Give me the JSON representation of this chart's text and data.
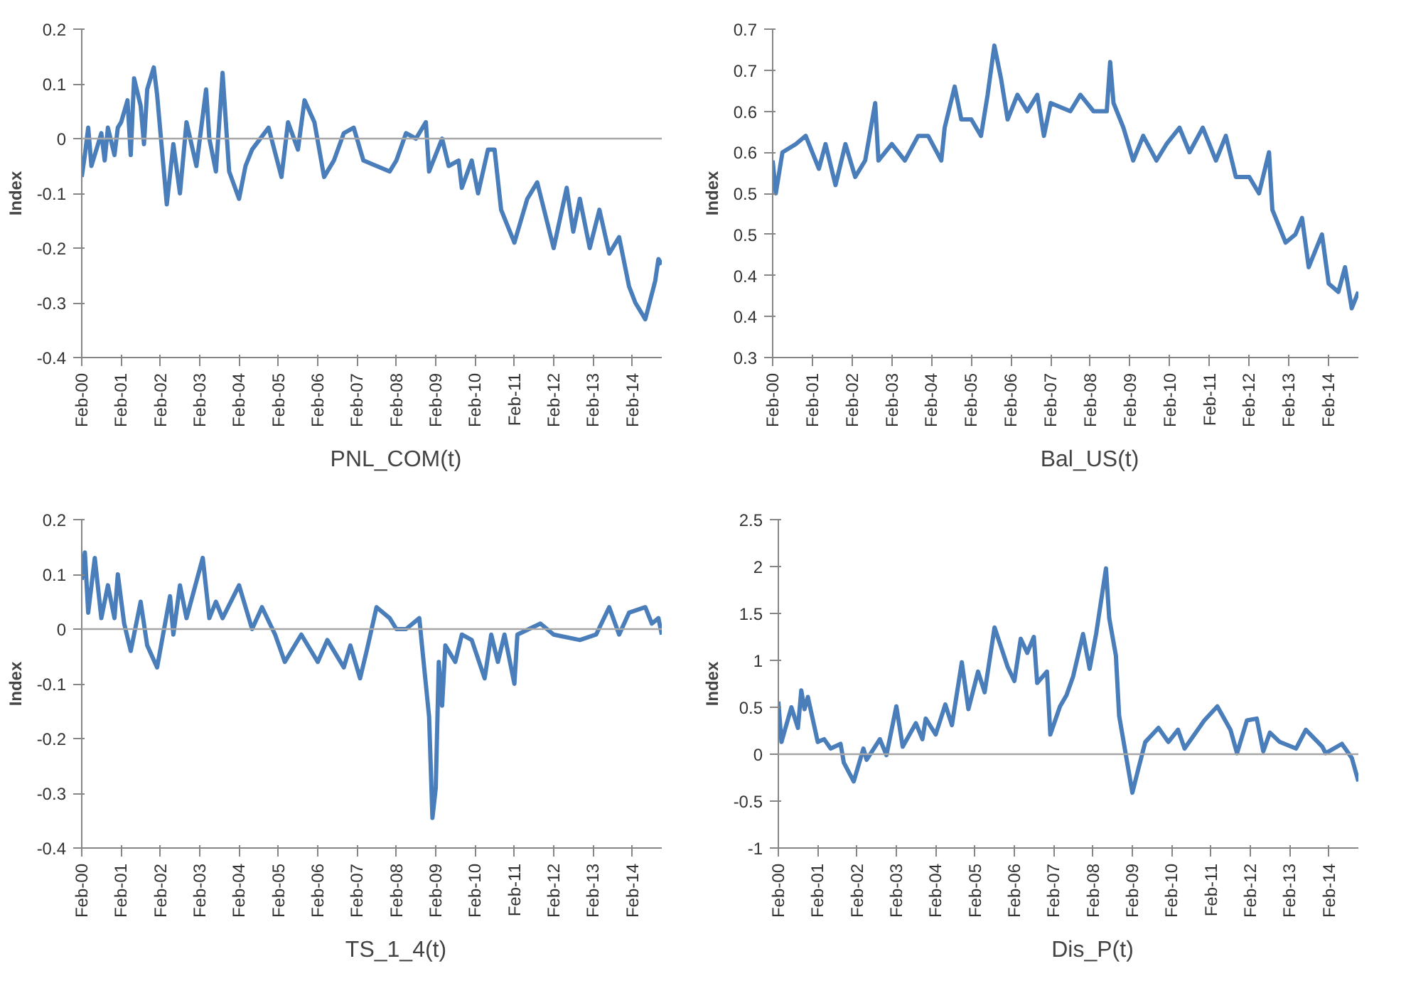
{
  "chart_data": [
    {
      "type": "line",
      "ylabel": "Index",
      "legend": "bottom",
      "ylim": [
        -0.4,
        0.2
      ],
      "yticks": [
        -0.4,
        -0.3,
        -0.2,
        -0.1,
        0,
        0.1,
        0.2
      ],
      "xlim": [
        "2000-02",
        "2014-11"
      ],
      "xticks": [
        {
          "value": "2000-02",
          "label": "Feb-00"
        },
        {
          "value": "2001-02",
          "label": "Feb-01"
        },
        {
          "value": "2002-02",
          "label": "Feb-02"
        },
        {
          "value": "2003-02",
          "label": "Feb-03"
        },
        {
          "value": "2004-02",
          "label": "Feb-04"
        },
        {
          "value": "2005-02",
          "label": "Feb-05"
        },
        {
          "value": "2006-02",
          "label": "Feb-06"
        },
        {
          "value": "2007-02",
          "label": "Feb-07"
        },
        {
          "value": "2008-02",
          "label": "Feb-08"
        },
        {
          "value": "2009-02",
          "label": "Feb-09"
        },
        {
          "value": "2010-02",
          "label": "Feb-10"
        },
        {
          "value": "2011-02",
          "label": "Feb-11"
        },
        {
          "value": "2012-02",
          "label": "Feb-12"
        },
        {
          "value": "2013-02",
          "label": "Feb-13"
        },
        {
          "value": "2014-02",
          "label": "Feb-14"
        }
      ],
      "ref_lines": [
        {
          "axis": "y",
          "value": 0,
          "color": "#a6a6a6"
        }
      ],
      "series": [
        {
          "name": "PNL_COM(t)",
          "color": "#4a7ebb",
          "x": [
            "2000-02",
            "2000-03",
            "2000-04",
            "2000-05",
            "2000-08",
            "2000-09",
            "2000-10",
            "2000-12",
            "2001-01",
            "2001-02",
            "2001-04",
            "2001-05",
            "2001-06",
            "2001-08",
            "2001-09",
            "2001-10",
            "2001-12",
            "2002-01",
            "2002-04",
            "2002-06",
            "2002-08",
            "2002-10",
            "2003-01",
            "2003-04",
            "2003-05",
            "2003-07",
            "2003-09",
            "2003-11",
            "2004-02",
            "2004-04",
            "2004-06",
            "2004-11",
            "2005-03",
            "2005-05",
            "2005-08",
            "2005-10",
            "2006-01",
            "2006-04",
            "2006-07",
            "2006-10",
            "2007-01",
            "2007-04",
            "2007-08",
            "2007-12",
            "2008-02",
            "2008-05",
            "2008-08",
            "2008-11",
            "2008-12",
            "2009-04",
            "2009-06",
            "2009-09",
            "2009-10",
            "2010-01",
            "2010-03",
            "2010-06",
            "2010-08",
            "2010-10",
            "2011-02",
            "2011-06",
            "2011-09",
            "2012-02",
            "2012-06",
            "2012-08",
            "2012-10",
            "2013-01",
            "2013-04",
            "2013-07",
            "2013-10",
            "2014-01",
            "2014-03",
            "2014-06",
            "2014-09",
            "2014-10",
            "2014-11"
          ],
          "values": [
            -0.07,
            -0.03,
            0.02,
            -0.05,
            0.01,
            -0.04,
            0.02,
            -0.03,
            0.02,
            0.03,
            0.07,
            -0.03,
            0.11,
            0.06,
            -0.01,
            0.09,
            0.13,
            0.08,
            -0.12,
            -0.01,
            -0.1,
            0.03,
            -0.05,
            0.09,
            0.0,
            -0.06,
            0.12,
            -0.06,
            -0.11,
            -0.05,
            -0.02,
            0.02,
            -0.07,
            0.03,
            -0.02,
            0.07,
            0.03,
            -0.07,
            -0.04,
            0.01,
            0.02,
            -0.04,
            -0.05,
            -0.06,
            -0.04,
            0.01,
            0.0,
            0.03,
            -0.06,
            0.0,
            -0.05,
            -0.04,
            -0.09,
            -0.04,
            -0.1,
            -0.02,
            -0.02,
            -0.13,
            -0.19,
            -0.11,
            -0.08,
            -0.2,
            -0.09,
            -0.17,
            -0.11,
            -0.2,
            -0.13,
            -0.21,
            -0.18,
            -0.27,
            -0.3,
            -0.33,
            -0.26,
            -0.22,
            -0.23
          ]
        }
      ]
    },
    {
      "type": "line",
      "ylabel": "Index",
      "legend": "bottom",
      "ylim": [
        0.3,
        0.7
      ],
      "yticks": [
        0.3,
        {
          "value": 0.35,
          "label": "0.4"
        },
        0.4,
        {
          "value": 0.45,
          "label": "0.5"
        },
        0.5,
        {
          "value": 0.55,
          "label": "0.6"
        },
        0.6,
        {
          "value": 0.65,
          "label": "0.7"
        },
        0.7
      ],
      "xlim": [
        "2000-02",
        "2014-11"
      ],
      "xticks": [
        {
          "value": "2000-02",
          "label": "Feb-00"
        },
        {
          "value": "2001-02",
          "label": "Feb-01"
        },
        {
          "value": "2002-02",
          "label": "Feb-02"
        },
        {
          "value": "2003-02",
          "label": "Feb-03"
        },
        {
          "value": "2004-02",
          "label": "Feb-04"
        },
        {
          "value": "2005-02",
          "label": "Feb-05"
        },
        {
          "value": "2006-02",
          "label": "Feb-06"
        },
        {
          "value": "2007-02",
          "label": "Feb-07"
        },
        {
          "value": "2008-02",
          "label": "Feb-08"
        },
        {
          "value": "2009-02",
          "label": "Feb-09"
        },
        {
          "value": "2010-02",
          "label": "Feb-10"
        },
        {
          "value": "2011-02",
          "label": "Feb-11"
        },
        {
          "value": "2012-02",
          "label": "Feb-12"
        },
        {
          "value": "2013-02",
          "label": "Feb-13"
        },
        {
          "value": "2014-02",
          "label": "Feb-14"
        }
      ],
      "series": [
        {
          "name": "Bal_US(t)",
          "color": "#4a7ebb",
          "x": [
            "2000-02",
            "2000-03",
            "2000-05",
            "2000-09",
            "2000-12",
            "2001-04",
            "2001-06",
            "2001-09",
            "2001-12",
            "2002-03",
            "2002-06",
            "2002-09",
            "2002-10",
            "2003-02",
            "2003-06",
            "2003-10",
            "2004-01",
            "2004-05",
            "2004-06",
            "2004-09",
            "2004-11",
            "2005-02",
            "2005-05",
            "2005-07",
            "2005-09",
            "2005-11",
            "2006-01",
            "2006-04",
            "2006-07",
            "2006-10",
            "2006-12",
            "2007-02",
            "2007-08",
            "2007-11",
            "2008-03",
            "2008-07",
            "2008-08",
            "2008-09",
            "2008-12",
            "2009-03",
            "2009-06",
            "2009-10",
            "2010-01",
            "2010-05",
            "2010-08",
            "2010-12",
            "2011-04",
            "2011-07",
            "2011-10",
            "2012-02",
            "2012-05",
            "2012-08",
            "2012-09",
            "2013-01",
            "2013-04",
            "2013-06",
            "2013-08",
            "2013-12",
            "2014-02",
            "2014-05",
            "2014-07",
            "2014-09",
            "2014-11"
          ],
          "values": [
            0.54,
            0.5,
            0.55,
            0.56,
            0.57,
            0.53,
            0.56,
            0.51,
            0.56,
            0.52,
            0.54,
            0.61,
            0.54,
            0.56,
            0.54,
            0.57,
            0.57,
            0.54,
            0.58,
            0.63,
            0.59,
            0.59,
            0.57,
            0.62,
            0.68,
            0.64,
            0.59,
            0.62,
            0.6,
            0.62,
            0.57,
            0.61,
            0.6,
            0.62,
            0.6,
            0.6,
            0.66,
            0.61,
            0.58,
            0.54,
            0.57,
            0.54,
            0.56,
            0.58,
            0.55,
            0.58,
            0.54,
            0.57,
            0.52,
            0.52,
            0.5,
            0.55,
            0.48,
            0.44,
            0.45,
            0.47,
            0.41,
            0.45,
            0.39,
            0.38,
            0.41,
            0.36,
            0.38
          ]
        }
      ]
    },
    {
      "type": "line",
      "ylabel": "Index",
      "legend": "bottom",
      "ylim": [
        -0.4,
        0.2
      ],
      "yticks": [
        -0.4,
        -0.3,
        -0.2,
        -0.1,
        0,
        0.1,
        0.2
      ],
      "xlim": [
        "2000-02",
        "2014-11"
      ],
      "xticks": [
        {
          "value": "2000-02",
          "label": "Feb-00"
        },
        {
          "value": "2001-02",
          "label": "Feb-01"
        },
        {
          "value": "2002-02",
          "label": "Feb-02"
        },
        {
          "value": "2003-02",
          "label": "Feb-03"
        },
        {
          "value": "2004-02",
          "label": "Feb-04"
        },
        {
          "value": "2005-02",
          "label": "Feb-05"
        },
        {
          "value": "2006-02",
          "label": "Feb-06"
        },
        {
          "value": "2007-02",
          "label": "Feb-07"
        },
        {
          "value": "2008-02",
          "label": "Feb-08"
        },
        {
          "value": "2009-02",
          "label": "Feb-09"
        },
        {
          "value": "2010-02",
          "label": "Feb-10"
        },
        {
          "value": "2011-02",
          "label": "Feb-11"
        },
        {
          "value": "2012-02",
          "label": "Feb-12"
        },
        {
          "value": "2013-02",
          "label": "Feb-13"
        },
        {
          "value": "2014-02",
          "label": "Feb-14"
        }
      ],
      "ref_lines": [
        {
          "axis": "y",
          "value": 0,
          "color": "#a6a6a6"
        }
      ],
      "series": [
        {
          "name": "TS_1_4(t)",
          "color": "#4a7ebb",
          "x": [
            "2000-02",
            "2000-03",
            "2000-04",
            "2000-06",
            "2000-08",
            "2000-10",
            "2000-12",
            "2001-01",
            "2001-03",
            "2001-05",
            "2001-08",
            "2001-10",
            "2002-01",
            "2002-05",
            "2002-06",
            "2002-08",
            "2002-10",
            "2003-03",
            "2003-05",
            "2003-07",
            "2003-09",
            "2004-02",
            "2004-06",
            "2004-09",
            "2005-01",
            "2005-04",
            "2005-09",
            "2006-02",
            "2006-05",
            "2006-10",
            "2006-12",
            "2007-03",
            "2007-05",
            "2007-08",
            "2007-12",
            "2008-02",
            "2008-05",
            "2008-09",
            "2008-10",
            "2008-12",
            "2009-01",
            "2009-02",
            "2009-03",
            "2009-04",
            "2009-05",
            "2009-08",
            "2009-10",
            "2010-01",
            "2010-05",
            "2010-07",
            "2010-09",
            "2010-11",
            "2011-02",
            "2011-03",
            "2011-10",
            "2012-02",
            "2012-10",
            "2013-03",
            "2013-07",
            "2013-10",
            "2014-01",
            "2014-06",
            "2014-08",
            "2014-10",
            "2014-11"
          ],
          "values": [
            0.09,
            0.14,
            0.03,
            0.13,
            0.02,
            0.08,
            0.02,
            0.1,
            0.01,
            -0.04,
            0.05,
            -0.03,
            -0.07,
            0.06,
            -0.01,
            0.08,
            0.02,
            0.13,
            0.02,
            0.05,
            0.02,
            0.08,
            0.0,
            0.04,
            -0.01,
            -0.06,
            -0.01,
            -0.06,
            -0.02,
            -0.07,
            -0.03,
            -0.09,
            -0.04,
            0.04,
            0.02,
            0.0,
            0.0,
            0.02,
            -0.04,
            -0.16,
            -0.345,
            -0.29,
            -0.06,
            -0.14,
            -0.03,
            -0.06,
            -0.01,
            -0.02,
            -0.09,
            -0.01,
            -0.06,
            -0.01,
            -0.1,
            -0.01,
            0.01,
            -0.01,
            -0.02,
            -0.01,
            0.04,
            -0.01,
            0.03,
            0.04,
            0.01,
            0.02,
            -0.01
          ]
        }
      ]
    },
    {
      "type": "line",
      "ylabel": "Index",
      "legend": "bottom",
      "ylim": [
        -1,
        2.5
      ],
      "yticks": [
        -1,
        -0.5,
        0,
        0.5,
        1,
        1.5,
        2,
        2.5
      ],
      "xlim": [
        "2000-02",
        "2014-11"
      ],
      "xticks": [
        {
          "value": "2000-02",
          "label": "Feb-00"
        },
        {
          "value": "2001-02",
          "label": "Feb-01"
        },
        {
          "value": "2002-02",
          "label": "Feb-02"
        },
        {
          "value": "2003-02",
          "label": "Feb-03"
        },
        {
          "value": "2004-02",
          "label": "Feb-04"
        },
        {
          "value": "2005-02",
          "label": "Feb-05"
        },
        {
          "value": "2006-02",
          "label": "Feb-06"
        },
        {
          "value": "2007-02",
          "label": "Feb-07"
        },
        {
          "value": "2008-02",
          "label": "Feb-08"
        },
        {
          "value": "2009-02",
          "label": "Feb-09"
        },
        {
          "value": "2010-02",
          "label": "Feb-10"
        },
        {
          "value": "2011-02",
          "label": "Feb-11"
        },
        {
          "value": "2012-02",
          "label": "Feb-12"
        },
        {
          "value": "2013-02",
          "label": "Feb-13"
        },
        {
          "value": "2014-02",
          "label": "Feb-14"
        }
      ],
      "ref_lines": [
        {
          "axis": "y",
          "value": 0,
          "color": "#a6a6a6"
        }
      ],
      "series": [
        {
          "name": "Dis_P(t)",
          "color": "#4a7ebb",
          "x": [
            "2000-02",
            "2000-03",
            "2000-06",
            "2000-08",
            "2000-09",
            "2000-10",
            "2000-11",
            "2001-02",
            "2001-04",
            "2001-06",
            "2001-09",
            "2001-10",
            "2002-01",
            "2002-04",
            "2002-05",
            "2002-09",
            "2002-11",
            "2003-02",
            "2003-04",
            "2003-08",
            "2003-10",
            "2003-11",
            "2004-02",
            "2004-05",
            "2004-07",
            "2004-10",
            "2004-12",
            "2005-03",
            "2005-05",
            "2005-08",
            "2005-12",
            "2006-02",
            "2006-04",
            "2006-06",
            "2006-08",
            "2006-09",
            "2006-12",
            "2007-01",
            "2007-04",
            "2007-06",
            "2007-08",
            "2007-11",
            "2008-01",
            "2008-03",
            "2008-06",
            "2008-07",
            "2008-09",
            "2008-10",
            "2009-02",
            "2009-04",
            "2009-06",
            "2009-10",
            "2010-01",
            "2010-04",
            "2010-06",
            "2010-12",
            "2011-04",
            "2011-08",
            "2011-10",
            "2012-01",
            "2012-04",
            "2012-06",
            "2012-08",
            "2012-11",
            "2013-04",
            "2013-07",
            "2013-12",
            "2014-01",
            "2014-06",
            "2014-09",
            "2014-11"
          ],
          "values": [
            0.56,
            0.13,
            0.5,
            0.28,
            0.68,
            0.48,
            0.61,
            0.13,
            0.16,
            0.06,
            0.11,
            -0.09,
            -0.29,
            0.06,
            -0.06,
            0.16,
            -0.01,
            0.51,
            0.08,
            0.33,
            0.16,
            0.38,
            0.21,
            0.53,
            0.31,
            0.98,
            0.48,
            0.88,
            0.66,
            1.35,
            0.93,
            0.78,
            1.23,
            1.08,
            1.25,
            0.76,
            0.88,
            0.21,
            0.51,
            0.63,
            0.83,
            1.28,
            0.91,
            1.28,
            1.98,
            1.45,
            1.05,
            0.41,
            -0.41,
            -0.14,
            0.13,
            0.28,
            0.13,
            0.26,
            0.06,
            0.36,
            0.51,
            0.26,
            0.01,
            0.36,
            0.38,
            0.03,
            0.23,
            0.13,
            0.06,
            0.26,
            0.08,
            0.01,
            0.11,
            -0.04,
            -0.29
          ]
        }
      ]
    }
  ]
}
